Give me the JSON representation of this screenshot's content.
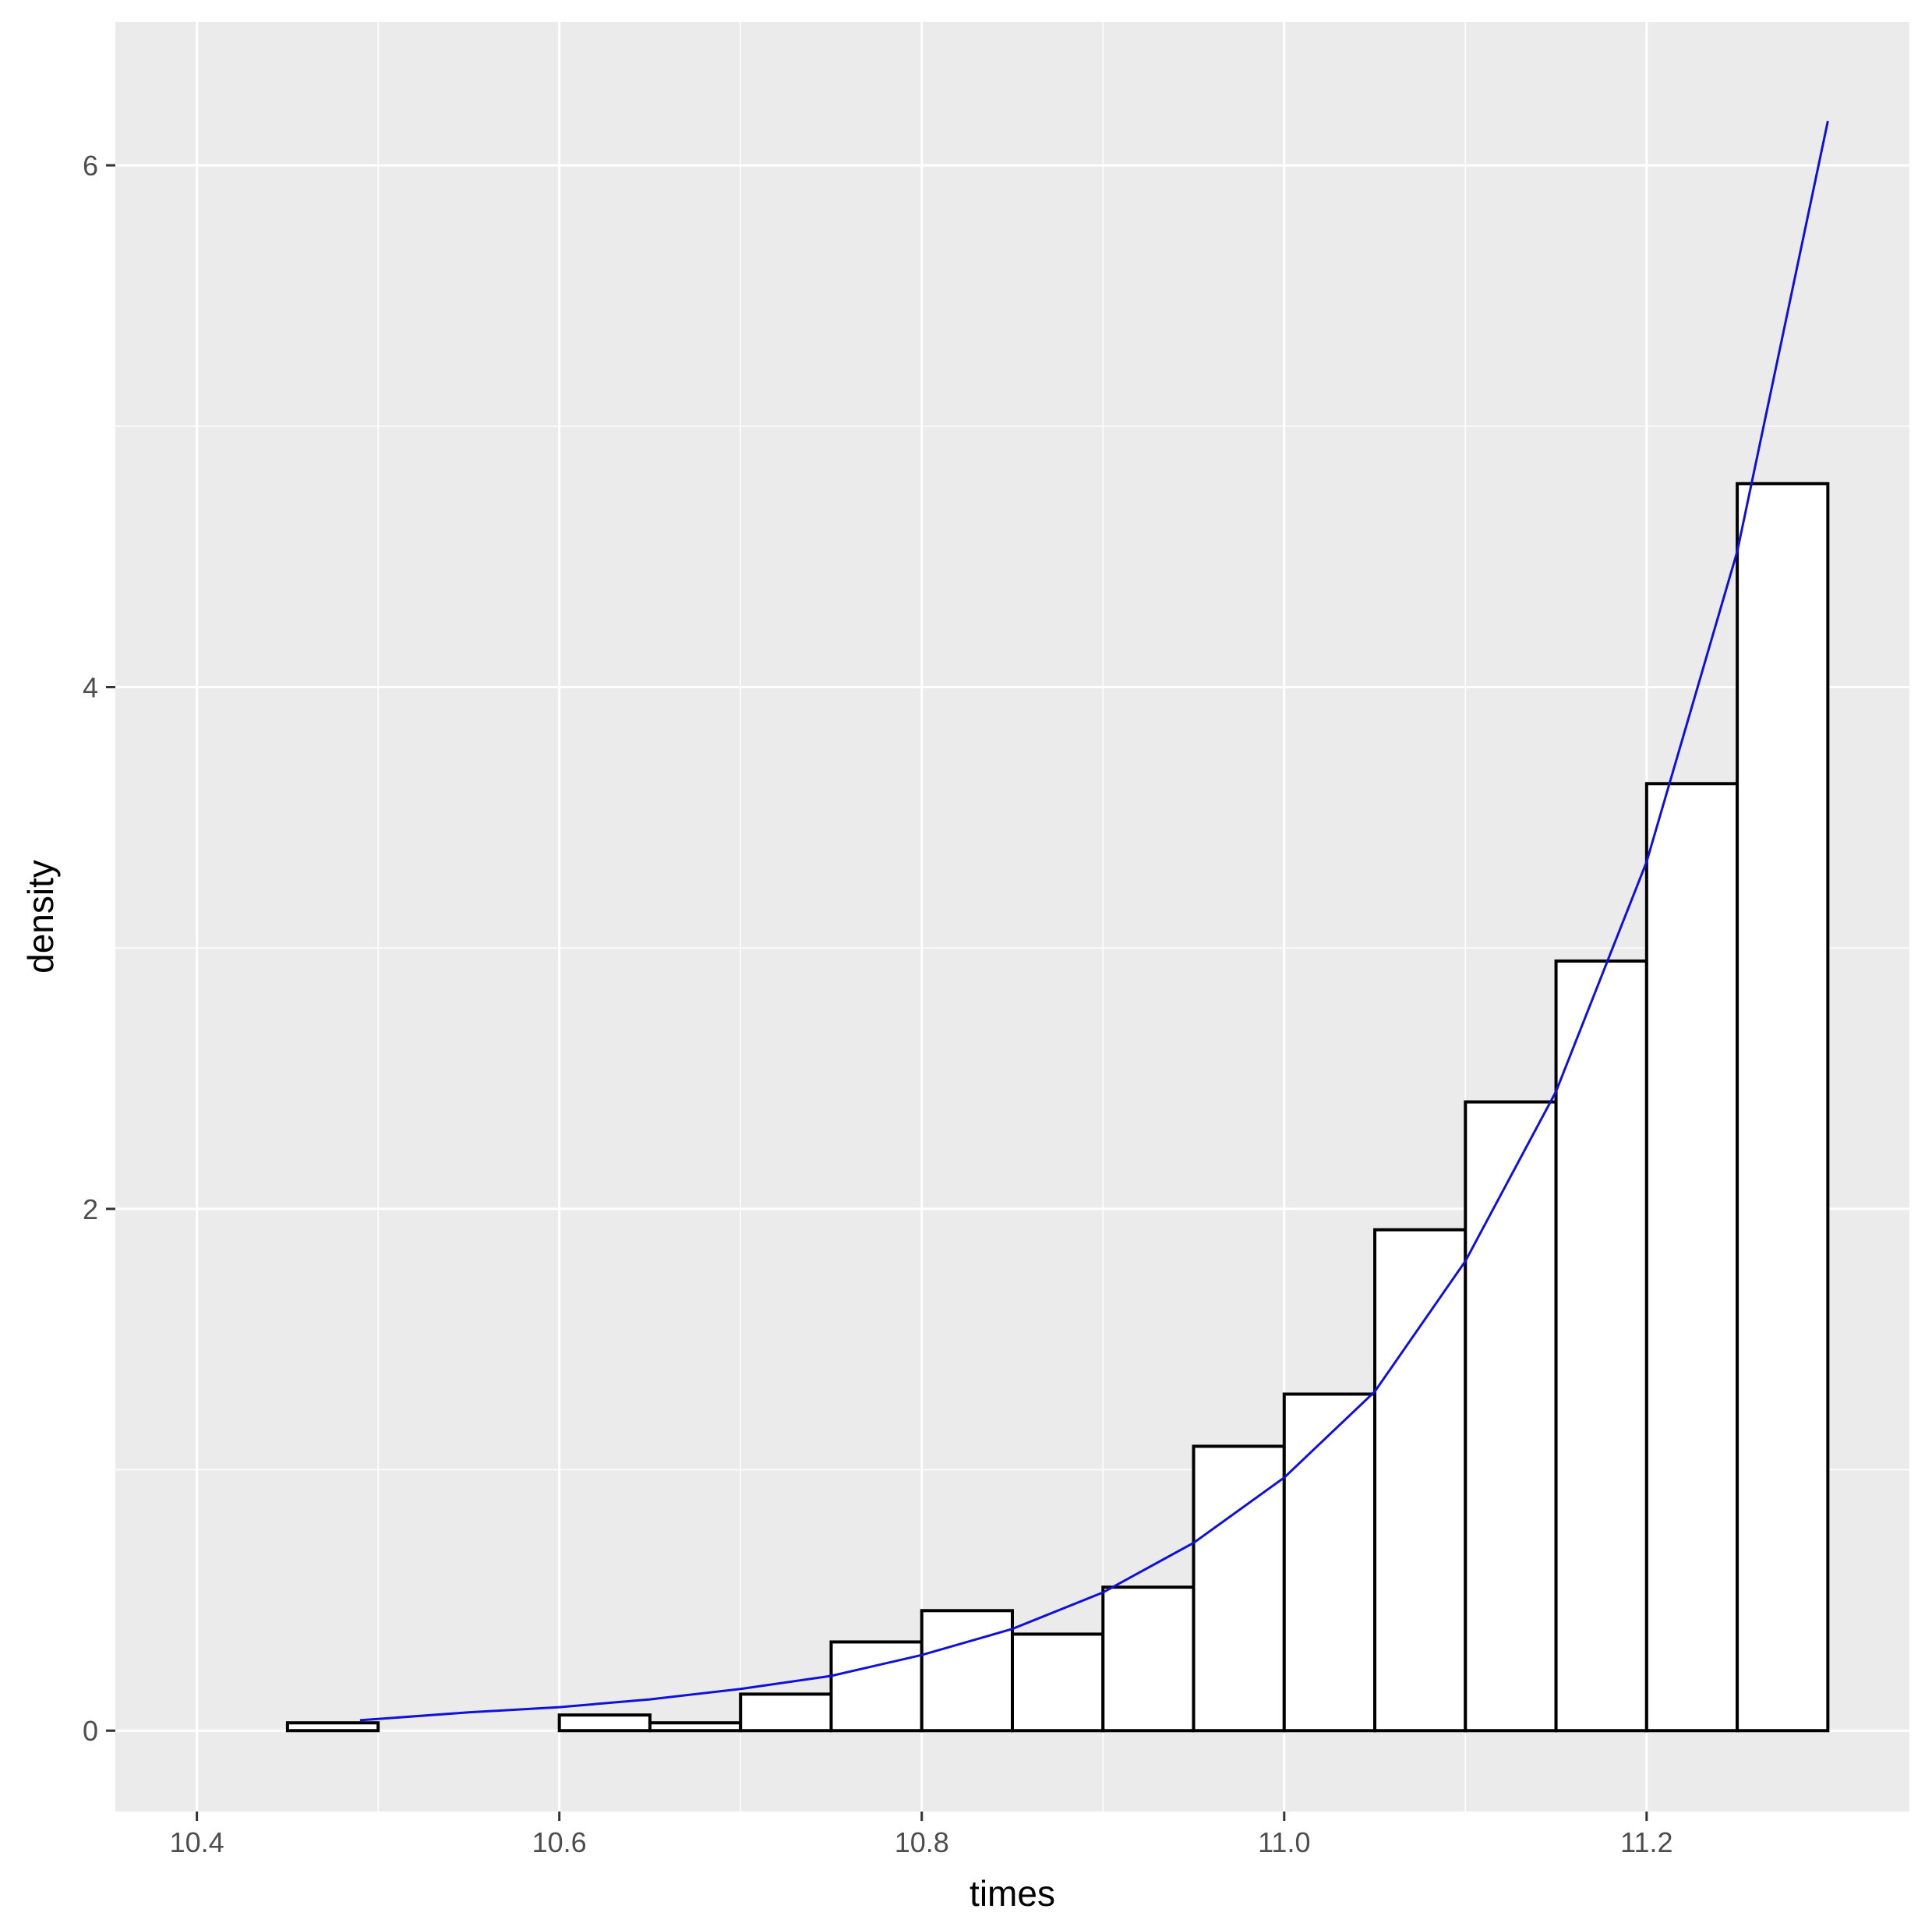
{
  "chart_data": {
    "type": "bar",
    "xlabel": "times",
    "ylabel": "density",
    "xlim": [
      10.355,
      11.345
    ],
    "ylim": [
      -0.31,
      6.55
    ],
    "x_ticks": [
      {
        "value": 10.4,
        "label": "10.4"
      },
      {
        "value": 10.6,
        "label": "10.6"
      },
      {
        "value": 10.8,
        "label": "10.8"
      },
      {
        "value": 11.0,
        "label": "11.0"
      },
      {
        "value": 11.2,
        "label": "11.2"
      }
    ],
    "y_ticks": [
      {
        "value": 0,
        "label": "0"
      },
      {
        "value": 2,
        "label": "2"
      },
      {
        "value": 4,
        "label": "4"
      },
      {
        "value": 6,
        "label": "6"
      }
    ],
    "grid": true,
    "bin_width": 0.05,
    "bins": [
      {
        "x0": 10.4,
        "x1": 10.45,
        "density": 0.0
      },
      {
        "x0": 10.45,
        "x1": 10.5,
        "density": 0.03
      },
      {
        "x0": 10.5,
        "x1": 10.55,
        "density": 0.0
      },
      {
        "x0": 10.55,
        "x1": 10.6,
        "density": 0.0
      },
      {
        "x0": 10.6,
        "x1": 10.65,
        "density": 0.06
      },
      {
        "x0": 10.65,
        "x1": 10.7,
        "density": 0.03
      },
      {
        "x0": 10.7,
        "x1": 10.75,
        "density": 0.14
      },
      {
        "x0": 10.75,
        "x1": 10.8,
        "density": 0.34
      },
      {
        "x0": 10.8,
        "x1": 10.85,
        "density": 0.46
      },
      {
        "x0": 10.85,
        "x1": 10.9,
        "density": 0.37
      },
      {
        "x0": 10.9,
        "x1": 10.95,
        "density": 0.55
      },
      {
        "x0": 10.95,
        "x1": 11.0,
        "density": 1.09
      },
      {
        "x0": 11.0,
        "x1": 11.05,
        "density": 1.29
      },
      {
        "x0": 11.05,
        "x1": 11.1,
        "density": 1.92
      },
      {
        "x0": 11.1,
        "x1": 11.15,
        "density": 2.41
      },
      {
        "x0": 11.15,
        "x1": 11.2,
        "density": 2.95
      },
      {
        "x0": 11.2,
        "x1": 11.25,
        "density": 3.63
      },
      {
        "x0": 11.25,
        "x1": 11.3,
        "density": 4.78
      }
    ],
    "density_curve": {
      "color": "#1010dd",
      "points": [
        [
          10.49,
          0.04
        ],
        [
          10.55,
          0.07
        ],
        [
          10.6,
          0.09
        ],
        [
          10.65,
          0.12
        ],
        [
          10.7,
          0.16
        ],
        [
          10.75,
          0.21
        ],
        [
          10.8,
          0.29
        ],
        [
          10.85,
          0.39
        ],
        [
          10.9,
          0.53
        ],
        [
          10.95,
          0.72
        ],
        [
          11.0,
          0.97
        ],
        [
          11.05,
          1.3
        ],
        [
          11.1,
          1.8
        ],
        [
          11.15,
          2.45
        ],
        [
          11.2,
          3.33
        ],
        [
          11.25,
          4.52
        ],
        [
          11.3,
          6.17
        ]
      ]
    },
    "colors": {
      "panel_background": "#ebebeb",
      "grid_line": "#ffffff",
      "bar_fill": "#ffffff",
      "bar_stroke": "#000000",
      "curve": "#1010dd"
    }
  }
}
